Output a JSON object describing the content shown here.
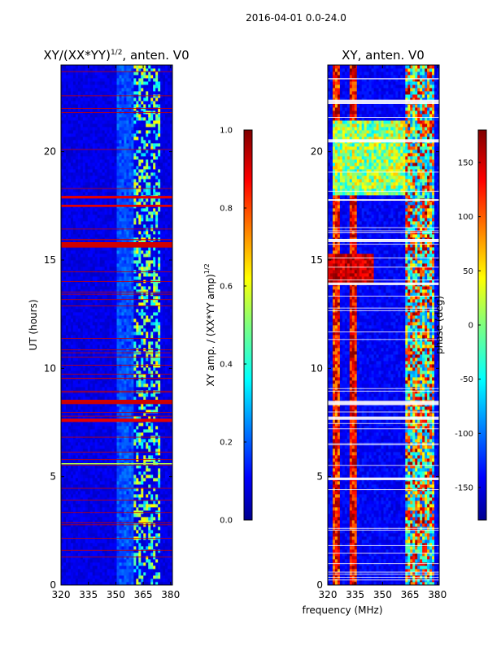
{
  "figure": {
    "suptitle": "2016-04-01 0.0-24.0",
    "shared_xlabel": "frequency (MHz)"
  },
  "chart_data": [
    {
      "type": "heatmap",
      "title": "XY/(XX*YY)^1/2, anten. V0",
      "title_main": "XY/(XX*YY)",
      "title_exp": "1/2",
      "title_suffix": ", anten. V0",
      "xlabel": "frequency (MHz)",
      "ylabel": "UT (hours)",
      "xlim": [
        320,
        381
      ],
      "ylim": [
        0,
        24
      ],
      "xticks": [
        320,
        335,
        350,
        365,
        380
      ],
      "yticks": [
        0,
        5,
        10,
        15,
        20
      ],
      "colormap": "jet",
      "colorbar": {
        "label": "XY amp. / (XX*YY amp)^1/2",
        "label_main": "XY amp. / (XX*YY amp)",
        "label_exp": "1/2",
        "range": [
          0.0,
          1.0
        ],
        "ticks": [
          "0.0",
          "0.2",
          "0.4",
          "0.6",
          "0.8",
          "1.0"
        ]
      }
    },
    {
      "type": "heatmap",
      "title": "XY, anten. V0",
      "xlabel": "frequency (MHz)",
      "ylabel": "",
      "xlim": [
        320,
        381
      ],
      "ylim": [
        0,
        24
      ],
      "xticks": [
        320,
        335,
        350,
        365,
        380
      ],
      "yticks": [
        0,
        5,
        10,
        15,
        20
      ],
      "colormap": "jet",
      "colorbar": {
        "label": "phase (deg)",
        "range": [
          -180,
          180
        ],
        "ticks": [
          "-150",
          "-100",
          "-50",
          "0",
          "50",
          "100",
          "150"
        ]
      }
    }
  ],
  "colors": {
    "jet_dark_blue": "#00008f",
    "jet_blue": "#0010ff",
    "jet_cyan": "#00ffff",
    "jet_yellow": "#ffff00",
    "jet_red": "#ff0000",
    "jet_dark_red": "#800000"
  }
}
